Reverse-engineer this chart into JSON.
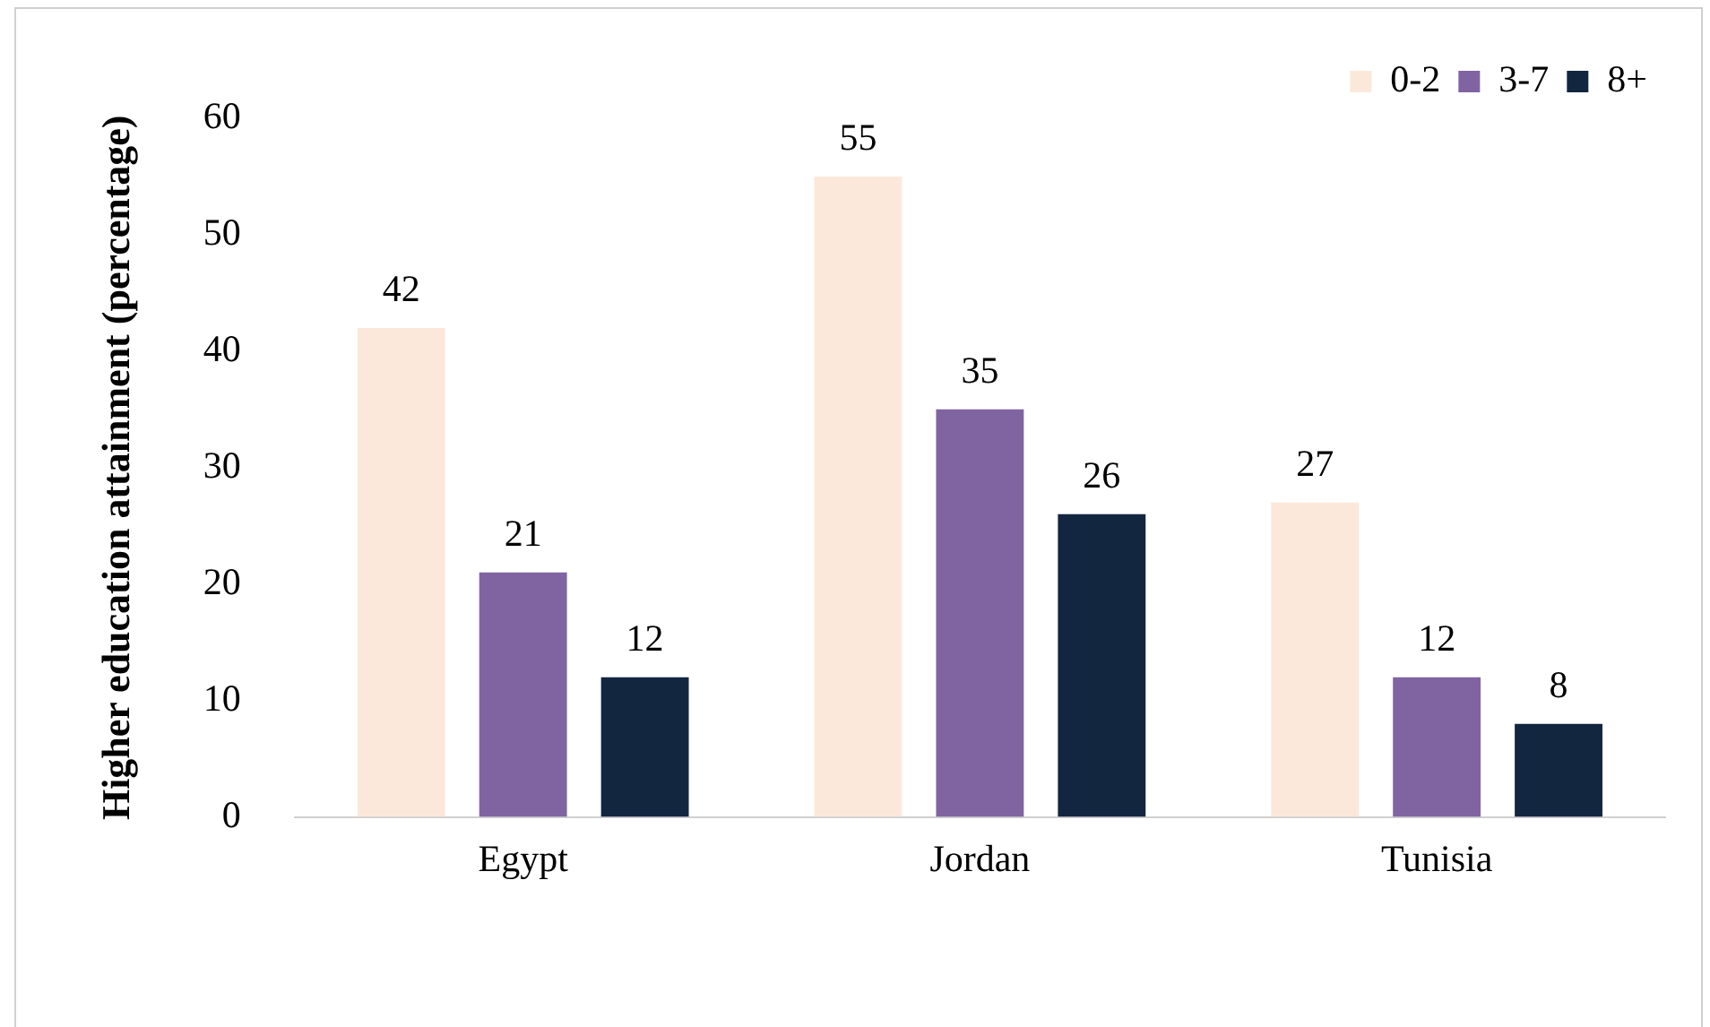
{
  "chart_data": {
    "type": "bar",
    "ylabel": "Higher education attainment (percentage)",
    "categories": [
      "Egypt",
      "Jordan",
      "Tunisia"
    ],
    "series": [
      {
        "name": "0-2",
        "color": "#fce8da",
        "values": [
          42,
          55,
          27
        ]
      },
      {
        "name": "3-7",
        "color": "#8064a2",
        "values": [
          21,
          35,
          12
        ]
      },
      {
        "name": "8+",
        "color": "#132640",
        "values": [
          12,
          26,
          8
        ]
      }
    ],
    "ylim": [
      0,
      60
    ],
    "yticks": [
      0,
      10,
      20,
      30,
      40,
      50,
      60
    ],
    "grid": false,
    "legend": "top right",
    "data_labels": true
  }
}
